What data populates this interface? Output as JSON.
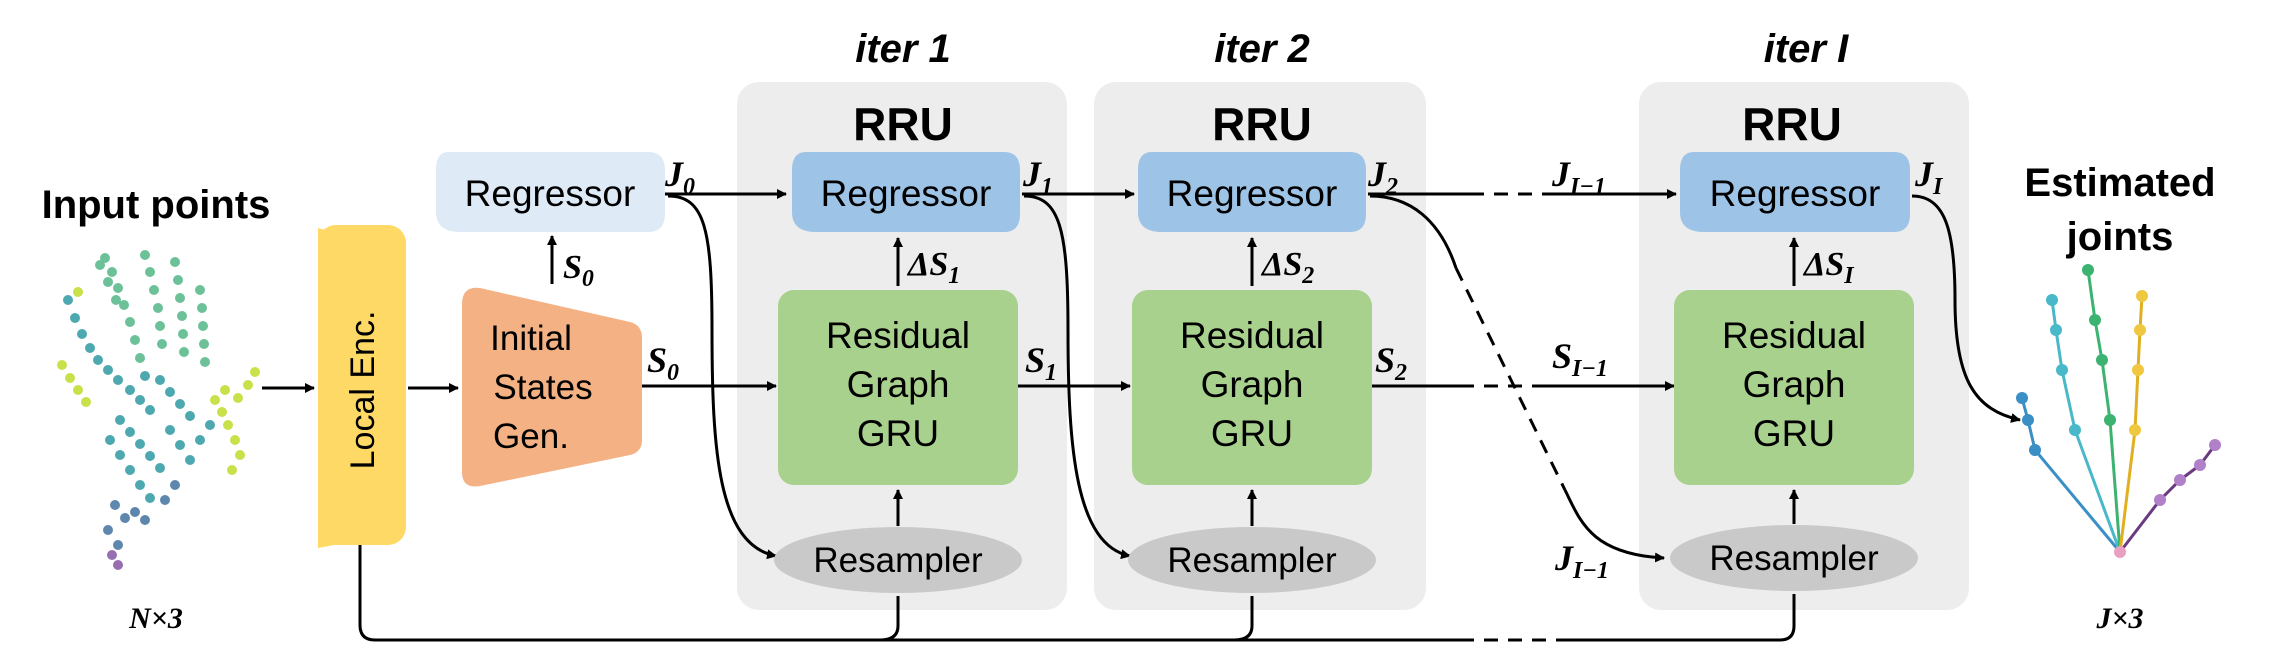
{
  "title_input": "Input points",
  "title_output_line1": "Estimated",
  "title_output_line2": "joints",
  "input_dim": "N×3",
  "output_dim": "J×3",
  "local_enc": "Local Enc.",
  "initial_states": [
    "Initial",
    "States",
    "Gen."
  ],
  "regressor": "Regressor",
  "rru": "RRU",
  "residual_gru": [
    "Residual",
    "Graph",
    "GRU"
  ],
  "resampler": "Resampler",
  "iterations": [
    {
      "label": "iter 1",
      "j_out": "J",
      "j_out_sub": "1",
      "ds": "ΔS",
      "ds_sub": "1",
      "s_out": "S",
      "s_out_sub": "1"
    },
    {
      "label": "iter 2",
      "j_out": "J",
      "j_out_sub": "2",
      "ds": "ΔS",
      "ds_sub": "2",
      "s_out": "S",
      "s_out_sub": "2"
    },
    {
      "label": "iter I",
      "j_out": "J",
      "j_out_sub": "I",
      "ds": "ΔS",
      "ds_sub": "I",
      "s_out": "",
      "s_out_sub": ""
    }
  ],
  "j0": {
    "main": "J",
    "sub": "0"
  },
  "s0_up": {
    "main": "S",
    "sub": "0"
  },
  "s0_right": {
    "main": "S",
    "sub": "0"
  },
  "j_i_minus_1": {
    "main": "J",
    "sub": "I−1"
  },
  "s_i_minus_1": {
    "main": "S",
    "sub": "I−1"
  },
  "j_i_minus_1_bottom": {
    "main": "J",
    "sub": "I−1"
  },
  "colors": {
    "panel": "#ededed",
    "regressor": "#9dc3e6",
    "regressor_light": "#deebf7",
    "gru": "#a9d18e",
    "resampler": "#c9c9c9",
    "local_enc": "#ffd966",
    "initial_states": "#f4b183"
  }
}
